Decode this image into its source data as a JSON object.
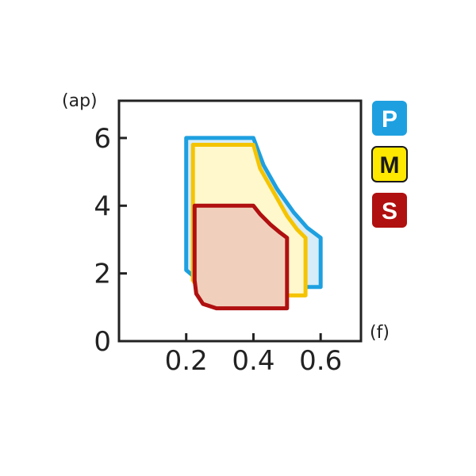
{
  "chart_data": {
    "type": "area",
    "xlabel": "(f)",
    "ylabel": "(ap)",
    "xlim": [
      0,
      0.72
    ],
    "ylim": [
      0,
      7.1
    ],
    "xticks": [
      "0.2",
      "0.4",
      "0.6"
    ],
    "xtick_values": [
      0.2,
      0.4,
      0.6
    ],
    "yticks": [
      "0",
      "2",
      "4",
      "6"
    ],
    "ytick_values": [
      0,
      2,
      4,
      6
    ],
    "grid": false,
    "legend_placement": "right",
    "series": [
      {
        "name": "P",
        "stroke": "#1ea0e0",
        "fill": "#d6ecf8",
        "badge_fill": "#1ea0e0",
        "badge_text": "#ffffff",
        "points": [
          [
            0.2,
            6
          ],
          [
            0.4,
            6
          ],
          [
            0.43,
            5.2
          ],
          [
            0.47,
            4.5
          ],
          [
            0.52,
            3.8
          ],
          [
            0.56,
            3.35
          ],
          [
            0.6,
            3.05
          ],
          [
            0.6,
            1.6
          ],
          [
            0.26,
            1.6
          ],
          [
            0.2,
            2.1
          ]
        ]
      },
      {
        "name": "M",
        "stroke": "#f5c400",
        "fill": "#fff8cc",
        "badge_fill": "#ffe800",
        "badge_text": "#1a1a1a",
        "points": [
          [
            0.22,
            5.8
          ],
          [
            0.4,
            5.8
          ],
          [
            0.42,
            5.1
          ],
          [
            0.46,
            4.4
          ],
          [
            0.5,
            3.7
          ],
          [
            0.53,
            3.3
          ],
          [
            0.555,
            3.05
          ],
          [
            0.555,
            1.35
          ],
          [
            0.25,
            1.35
          ],
          [
            0.22,
            1.8
          ]
        ]
      },
      {
        "name": "S",
        "stroke": "#b01010",
        "fill": "#f0d0bc",
        "badge_fill": "#b01010",
        "badge_text": "#ffffff",
        "points": [
          [
            0.225,
            4
          ],
          [
            0.4,
            4
          ],
          [
            0.42,
            3.75
          ],
          [
            0.45,
            3.45
          ],
          [
            0.48,
            3.2
          ],
          [
            0.5,
            3.05
          ],
          [
            0.5,
            0.97
          ],
          [
            0.29,
            0.97
          ],
          [
            0.25,
            1.1
          ],
          [
            0.23,
            1.4
          ],
          [
            0.225,
            1.8
          ]
        ]
      }
    ]
  }
}
